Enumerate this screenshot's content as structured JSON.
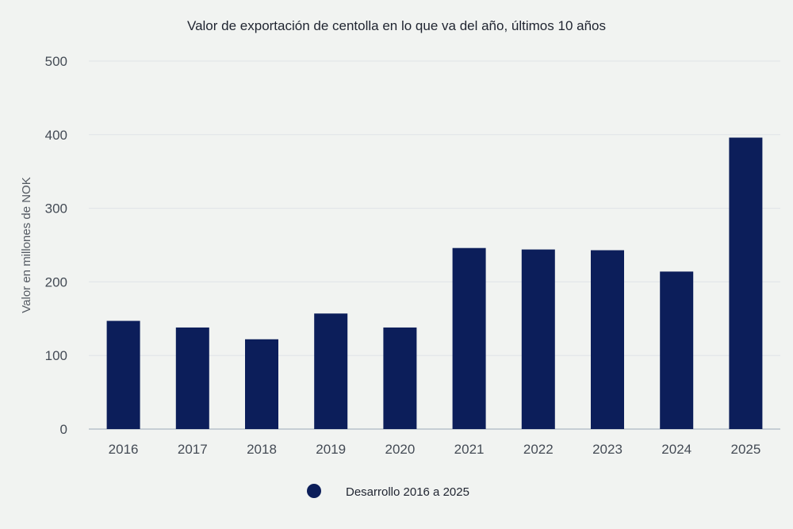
{
  "chart_data": {
    "type": "bar",
    "title": "Valor de exportación de centolla en lo que va del año, últimos 10 años",
    "xlabel": "",
    "ylabel": "Valor en millones de NOK",
    "categories": [
      "2016",
      "2017",
      "2018",
      "2019",
      "2020",
      "2021",
      "2022",
      "2023",
      "2024",
      "2025"
    ],
    "series": [
      {
        "name": "Desarrollo 2016 a 2025",
        "color": "#0c1e5a",
        "values": [
          147,
          138,
          122,
          157,
          138,
          246,
          244,
          243,
          214,
          396
        ]
      }
    ],
    "ylim": [
      0,
      500
    ],
    "yticks": [
      "0",
      "100",
      "200",
      "300",
      "400",
      "500"
    ],
    "grid": true,
    "legend_position": "bottom-center"
  }
}
